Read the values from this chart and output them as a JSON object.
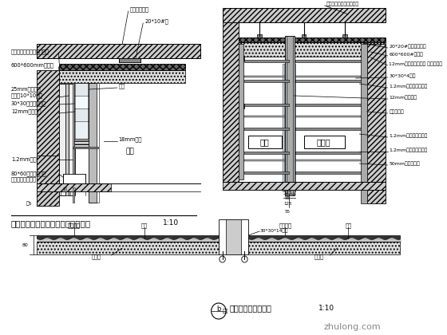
{
  "bg_color": "#ffffff",
  "title1": "走道玻璃隔断与石膏板墙接口剖面图",
  "title1_scale": "1:10",
  "title2": "走道玻璃隔断剖面图",
  "title2_scale": "1:10",
  "line_color": "#000000",
  "corridor_label": "走道",
  "office_label": "办公室",
  "watermark": "zhulong.com"
}
